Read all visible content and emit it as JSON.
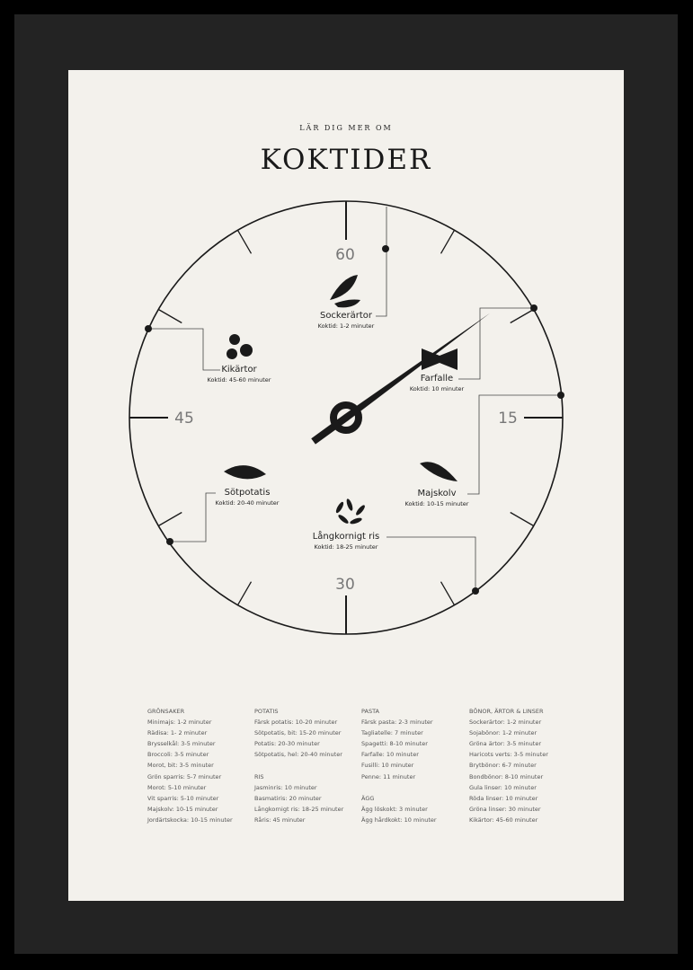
{
  "header": {
    "kicker": "LÄR DIG MER OM",
    "title": "KOKTIDER"
  },
  "dial": {
    "numbers": [
      "60",
      "15",
      "30",
      "45"
    ],
    "hand_minutes": 9,
    "items": [
      {
        "name": "Sockerärtor",
        "time": "Koktid: 1-2 minuter",
        "icon": "peapod-icon"
      },
      {
        "name": "Farfalle",
        "time": "Koktid: 10 minuter",
        "icon": "farfalle-icon"
      },
      {
        "name": "Kikärtor",
        "time": "Koktid: 45-60 minuter",
        "icon": "chickpea-icon"
      },
      {
        "name": "Majskolv",
        "time": "Koktid: 10-15 minuter",
        "icon": "corn-icon"
      },
      {
        "name": "Sötpotatis",
        "time": "Koktid: 20-40 minuter",
        "icon": "sweet-potato-icon"
      },
      {
        "name": "Långkornigt ris",
        "time": "Koktid: 18-25 minuter",
        "icon": "rice-icon"
      }
    ]
  },
  "lists": [
    {
      "groups": [
        {
          "heading": "GRÖNSAKER",
          "items": [
            "Minimajs: 1-2 minuter",
            "Rädisa: 1- 2 minuter",
            "Brysselkål: 3-5 minuter",
            "Broccoli: 3-5 minuter",
            "Morot, bit: 3-5 minuter",
            "Grön sparris: 5-7 minuter",
            "Morot: 5-10 minuter",
            "Vit sparris: 5-10 minuter",
            "Majskolv: 10-15 minuter",
            "Jordärtskocka: 10-15 minuter"
          ]
        }
      ]
    },
    {
      "groups": [
        {
          "heading": "POTATIS",
          "items": [
            "Färsk potatis: 10-20 minuter",
            "Sötpotatis, bit: 15-20 minuter",
            "Potatis: 20-30 minuter",
            "Sötpotatis, hel: 20-40 minuter"
          ]
        },
        {
          "heading": "RIS",
          "items": [
            "Jasminris: 10 minuter",
            "Basmatiris: 20 minuter",
            "Långkornigt ris: 18-25 minuter",
            "Råris: 45 minuter"
          ]
        }
      ]
    },
    {
      "groups": [
        {
          "heading": "PASTA",
          "items": [
            "Färsk pasta: 2-3 minuter",
            "Tagliatelle: 7 minuter",
            "Spagetti: 8-10 minuter",
            "Farfalle: 10 minuter",
            "Fusilli: 10 minuter",
            "Penne: 11 minuter"
          ]
        },
        {
          "heading": "ÄGG",
          "items": [
            "Ägg löskokt: 3 minuter",
            "Ägg hårdkokt: 10 minuter"
          ]
        }
      ]
    },
    {
      "groups": [
        {
          "heading": "BÖNOR, ÄRTOR & LINSER",
          "items": [
            "Sockerärtor: 1-2 minuter",
            "Sojabönor: 1-2 minuter",
            "Gröna ärtor: 3-5 minuter",
            "Haricots verts: 3-5 minuter",
            "Brytbönor: 6-7 minuter",
            "Bondbönor: 8-10 minuter",
            "Gula linser: 10 minuter",
            "Röda linser: 10 minuter",
            "Gröna linser: 30 minuter",
            "Kikärtor: 45-60 minuter"
          ]
        }
      ]
    }
  ],
  "colors": {
    "paper": "#f3f1ec",
    "ink": "#1a1a1a",
    "frame": "#232323"
  }
}
